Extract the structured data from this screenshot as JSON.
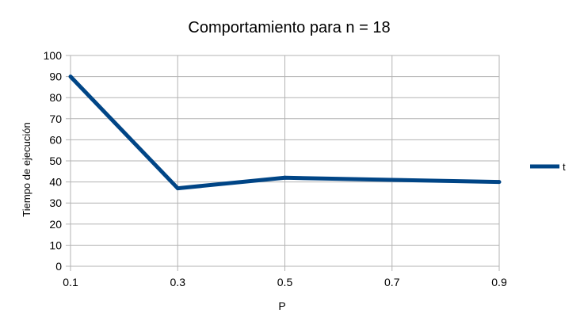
{
  "chart_data": {
    "type": "line",
    "title": "Comportamiento para n = 18",
    "xlabel": "P",
    "ylabel": "Tiempo de ejecución",
    "x": [
      0.1,
      0.3,
      0.5,
      0.7,
      0.9
    ],
    "x_tick_labels": [
      "0.1",
      "0.3",
      "0.5",
      "0.7",
      "0.9"
    ],
    "y_tick_labels": [
      "0",
      "10",
      "20",
      "30",
      "40",
      "50",
      "60",
      "70",
      "80",
      "90",
      "100"
    ],
    "xlim": [
      0.1,
      0.9
    ],
    "ylim": [
      0,
      100
    ],
    "grid": true,
    "legend_position": "right",
    "series": [
      {
        "name": "t",
        "color": "#004586",
        "values": [
          90,
          37,
          42,
          41,
          40
        ]
      }
    ]
  }
}
